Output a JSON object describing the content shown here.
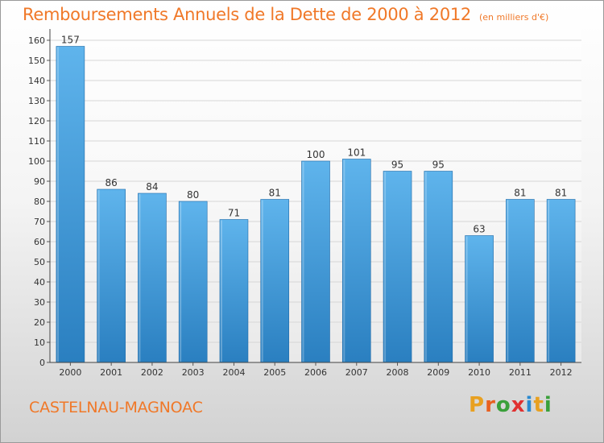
{
  "header": {
    "title": "Remboursements Annuels de la Dette de 2000 à 2012",
    "subtitle": "(en milliers d'€)"
  },
  "footer": {
    "commune": "CASTELNAU-MAGNOAC",
    "brand": "Proxiti"
  },
  "colors": {
    "title": "#f07828",
    "bar_top": "#5fb4ec",
    "bar_bottom": "#2a7fc0",
    "logo_letters": [
      "#e8a020",
      "#e86020",
      "#3aa03a",
      "#e03030",
      "#2a8ad0",
      "#e8a020",
      "#3aa03a"
    ]
  },
  "chart_data": {
    "type": "bar",
    "categories": [
      "2000",
      "2001",
      "2002",
      "2003",
      "2004",
      "2005",
      "2006",
      "2007",
      "2008",
      "2009",
      "2010",
      "2011",
      "2012"
    ],
    "values": [
      157,
      86,
      84,
      80,
      71,
      81,
      100,
      101,
      95,
      95,
      63,
      81,
      81
    ],
    "title": "Remboursements Annuels de la Dette de 2000 à 2012",
    "subtitle": "(en milliers d'€)",
    "ylim": [
      0,
      160
    ],
    "yticks": [
      0,
      10,
      20,
      30,
      40,
      50,
      60,
      70,
      80,
      90,
      100,
      110,
      120,
      130,
      140,
      150,
      160
    ],
    "grid": true,
    "data_labels": true
  }
}
